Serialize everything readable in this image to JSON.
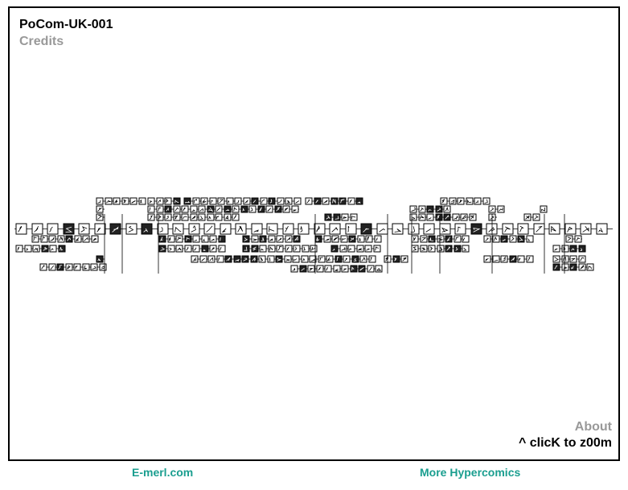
{
  "comic": {
    "title": "PoCom-UK-001",
    "credits_label": "Credits",
    "about_label": "About",
    "zoom_hint": "^ clicK to z00m"
  },
  "footer": {
    "emerl_label": "E-merl.com",
    "more_label": "More Hypercomics"
  },
  "colors": {
    "frame": "#000000",
    "muted_text": "#999999",
    "footer_link": "#1a9e8f"
  },
  "map": {
    "description_icon": "panel-thumbnail-icon"
  }
}
